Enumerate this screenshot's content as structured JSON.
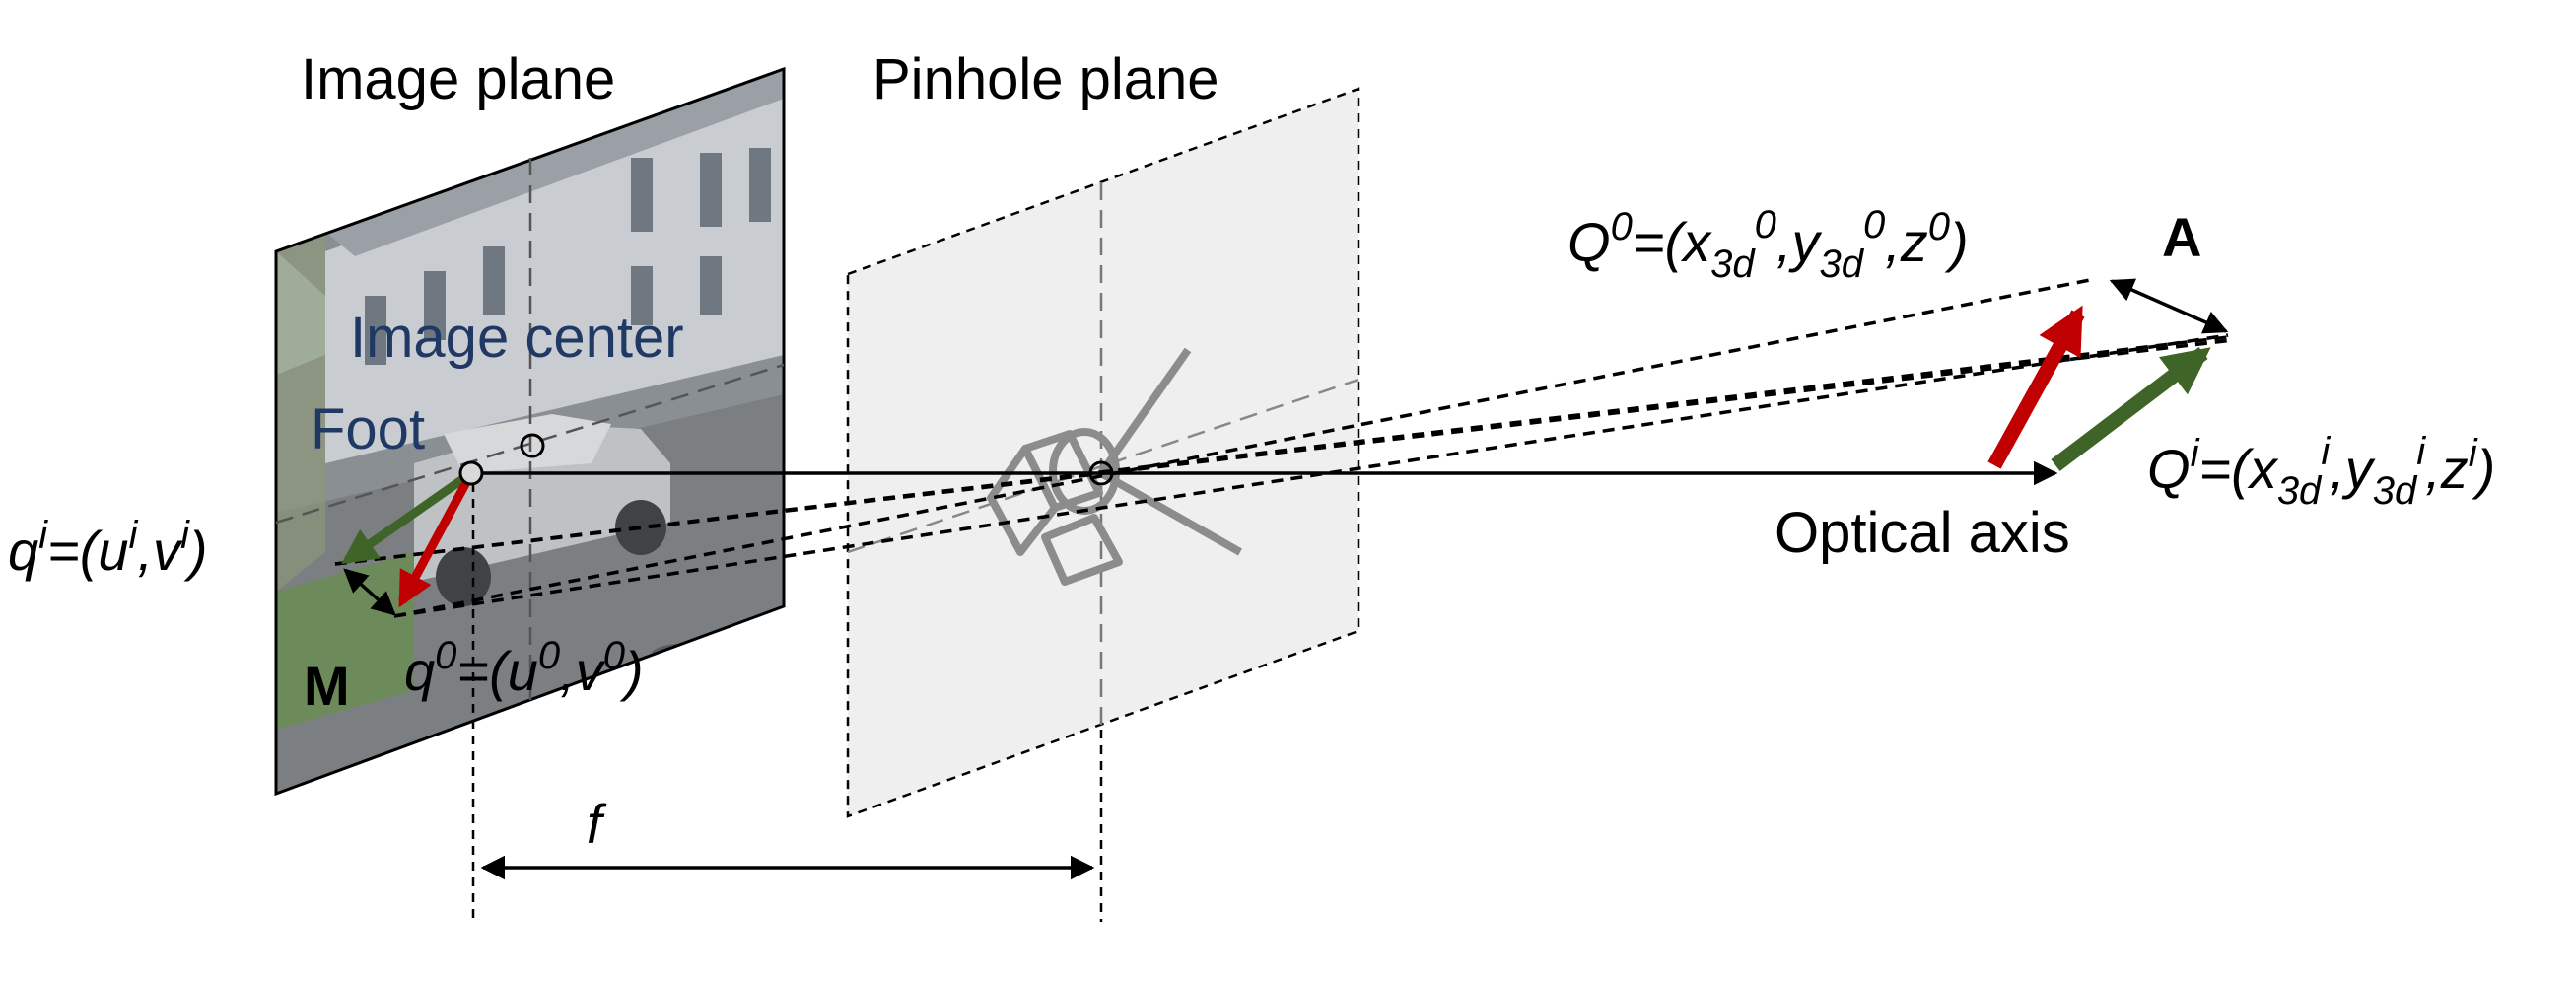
{
  "labels": {
    "image_plane": "Image plane",
    "pinhole_plane": "Pinhole plane",
    "image_center": "Image center",
    "foot": "Foot",
    "optical_axis": "Optical axis",
    "focal_length": "f",
    "point_a": "A",
    "point_m": "M"
  },
  "equations": {
    "q_i": {
      "lhs": "q",
      "sup": "i",
      "rhs_open": "=(u",
      "sup_u": "i",
      "comma": ",v",
      "sup_v": "i",
      "close": ")"
    },
    "q_0": {
      "lhs": "q",
      "sup": "0",
      "rhs_open": "=(u",
      "sup_u": "0",
      "comma": ",v",
      "sup_v": "0",
      "close": ")"
    },
    "Q_0": {
      "lhs": "Q",
      "sup": "0",
      "rhs_open": "=(x",
      "sub_x": "3d",
      "sup_x": "0",
      "comma1": ",y",
      "sub_y": "3d",
      "sup_y": "0",
      "comma2": ",z",
      "sup_z": "0",
      "close": ")"
    },
    "Q_i": {
      "lhs": "Q",
      "sup": "i",
      "rhs_open": "=(x",
      "sub_x": "3d",
      "sup_x": "i",
      "comma1": ",y",
      "sub_y": "3d",
      "sup_y": "i",
      "comma2": ",z",
      "sup_z": "i",
      "close": ")"
    }
  },
  "colors": {
    "red_arrow": "#c00000",
    "green_arrow": "#3f6427",
    "blue_text": "#1f3864",
    "plane_fill": "#efefef",
    "camera_gray": "#8c8c8c"
  }
}
